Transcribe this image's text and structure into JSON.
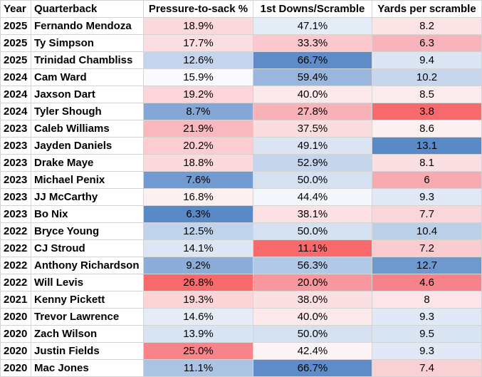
{
  "table": {
    "headers": [
      "Year",
      "Quarterback",
      "Pressure-to-sack %",
      "1st Downs/Scramble",
      "Yards per scramble"
    ],
    "rows": [
      {
        "year": "2025",
        "qb": "Fernando Mendoza",
        "p2s": "18.9%",
        "p2s_bg": "#fbd8dc",
        "fds": "47.1%",
        "fds_bg": "#e4ecf6",
        "yps": "8.2",
        "yps_bg": "#fbe3e6"
      },
      {
        "year": "2025",
        "qb": "Ty Simpson",
        "p2s": "17.7%",
        "p2s_bg": "#fbdee1",
        "fds": "33.3%",
        "fds_bg": "#fbc8cd",
        "yps": "6.3",
        "yps_bg": "#f8b4ba"
      },
      {
        "year": "2025",
        "qb": "Trinidad Chambliss",
        "p2s": "12.6%",
        "p2s_bg": "#c3d4ec",
        "fds": "66.7%",
        "fds_bg": "#5f8cc8",
        "yps": "9.4",
        "yps_bg": "#dbe5f3"
      },
      {
        "year": "2024",
        "qb": "Cam Ward",
        "p2s": "15.9%",
        "p2s_bg": "#f9fafd",
        "fds": "59.4%",
        "fds_bg": "#99b6dc",
        "yps": "10.2",
        "yps_bg": "#c6d6ec"
      },
      {
        "year": "2024",
        "qb": "Jaxson Dart",
        "p2s": "19.2%",
        "p2s_bg": "#fbd5d9",
        "fds": "40.0%",
        "fds_bg": "#fce9eb",
        "yps": "8.5",
        "yps_bg": "#fcebed"
      },
      {
        "year": "2024",
        "qb": "Tyler Shough",
        "p2s": "8.7%",
        "p2s_bg": "#84a7d5",
        "fds": "27.8%",
        "fds_bg": "#f9b2b8",
        "yps": "3.8",
        "yps_bg": "#f8696b"
      },
      {
        "year": "2023",
        "qb": "Caleb Williams",
        "p2s": "21.9%",
        "p2s_bg": "#f9b8be",
        "fds": "37.5%",
        "fds_bg": "#fbdde0",
        "yps": "8.6",
        "yps_bg": "#fcf0f1"
      },
      {
        "year": "2023",
        "qb": "Jayden Daniels",
        "p2s": "20.2%",
        "p2s_bg": "#fbcdd1",
        "fds": "49.1%",
        "fds_bg": "#dae4f3",
        "yps": "13.1",
        "yps_bg": "#5a89c7"
      },
      {
        "year": "2023",
        "qb": "Drake Maye",
        "p2s": "18.8%",
        "p2s_bg": "#fbd9dc",
        "fds": "52.9%",
        "fds_bg": "#c5d5ec",
        "yps": "8.1",
        "yps_bg": "#fbe0e3"
      },
      {
        "year": "2023",
        "qb": "Michael Penix",
        "p2s": "7.6%",
        "p2s_bg": "#719ad0",
        "fds": "50.0%",
        "fds_bg": "#d5e1f1",
        "yps": "6",
        "yps_bg": "#f7abb1"
      },
      {
        "year": "2023",
        "qb": "JJ McCarthy",
        "p2s": "16.8%",
        "p2s_bg": "#fcf0f1",
        "fds": "44.4%",
        "fds_bg": "#f3f6fb",
        "yps": "9.3",
        "yps_bg": "#e0e9f5"
      },
      {
        "year": "2023",
        "qb": "Bo Nix",
        "p2s": "6.3%",
        "p2s_bg": "#5a89c7",
        "fds": "38.1%",
        "fds_bg": "#fbe1e4",
        "yps": "7.7",
        "yps_bg": "#fad6da"
      },
      {
        "year": "2022",
        "qb": "Bryce Young",
        "p2s": "12.5%",
        "p2s_bg": "#c1d3eb",
        "fds": "50.0%",
        "fds_bg": "#d5e1f1",
        "yps": "10.4",
        "yps_bg": "#bccfe9"
      },
      {
        "year": "2022",
        "qb": "CJ Stroud",
        "p2s": "14.1%",
        "p2s_bg": "#dde7f4",
        "fds": "11.1%",
        "fds_bg": "#f8696b",
        "yps": "7.2",
        "yps_bg": "#f9ccd0"
      },
      {
        "year": "2022",
        "qb": "Anthony Richardson",
        "p2s": "9.2%",
        "p2s_bg": "#8cadd8",
        "fds": "56.3%",
        "fds_bg": "#b1c8e6",
        "yps": "12.7",
        "yps_bg": "#6f98ce"
      },
      {
        "year": "2022",
        "qb": "Will Levis",
        "p2s": "26.8%",
        "p2s_bg": "#f8696b",
        "fds": "20.0%",
        "fds_bg": "#f8979d",
        "yps": "4.6",
        "yps_bg": "#f68389"
      },
      {
        "year": "2021",
        "qb": "Kenny Pickett",
        "p2s": "19.3%",
        "p2s_bg": "#fbd4d8",
        "fds": "38.0%",
        "fds_bg": "#fbe0e3",
        "yps": "8",
        "yps_bg": "#fbe5e8"
      },
      {
        "year": "2020",
        "qb": "Trevor Lawrence",
        "p2s": "14.6%",
        "p2s_bg": "#e5ecf6",
        "fds": "40.0%",
        "fds_bg": "#fce9eb",
        "yps": "9.3",
        "yps_bg": "#e0e9f5"
      },
      {
        "year": "2020",
        "qb": "Zach Wilson",
        "p2s": "13.9%",
        "p2s_bg": "#d9e4f2",
        "fds": "50.0%",
        "fds_bg": "#d5e1f1",
        "yps": "9.5",
        "yps_bg": "#d9e4f3"
      },
      {
        "year": "2020",
        "qb": "Justin Fields",
        "p2s": "25.0%",
        "p2s_bg": "#f8848a",
        "fds": "42.4%",
        "fds_bg": "#fcf3f4",
        "yps": "9.3",
        "yps_bg": "#e0e9f5"
      },
      {
        "year": "2020",
        "qb": "Mac Jones",
        "p2s": "11.1%",
        "p2s_bg": "#acc4e3",
        "fds": "66.7%",
        "fds_bg": "#5f8cc8",
        "yps": "7.4",
        "yps_bg": "#f9d0d4"
      }
    ]
  }
}
